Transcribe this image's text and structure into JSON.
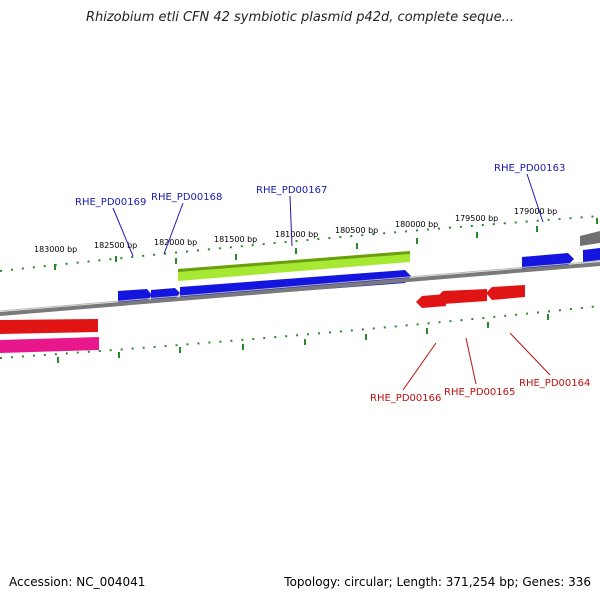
{
  "title": "Rhizobium etli CFN 42 symbiotic plasmid p42d, complete seque...",
  "footer": {
    "accession": "Accession: NC_004041",
    "summary": "Topology: circular; Length: 371,254 bp; Genes: 336"
  },
  "colors": {
    "forward_gene": "#1010e0",
    "reverse_gene": "#e01010",
    "rrna_like": "#e0188a",
    "highlight_gene": "#9ee02a",
    "backbone": "#808080",
    "tick": "#2a8a2a",
    "forward_label": "#1a1ab0",
    "reverse_label": "#c01010"
  },
  "ticks": [
    {
      "label": "183000 bp"
    },
    {
      "label": "182500 bp"
    },
    {
      "label": "182000 bp"
    },
    {
      "label": "181500 bp"
    },
    {
      "label": "181000 bp"
    },
    {
      "label": "180500 bp"
    },
    {
      "label": "180000 bp"
    },
    {
      "label": "179500 bp"
    },
    {
      "label": "179000 bp"
    }
  ],
  "genes_forward": [
    {
      "name": "RHE_PD00169"
    },
    {
      "name": "RHE_PD00168"
    },
    {
      "name": "RHE_PD00167"
    },
    {
      "name": "RHE_PD00163"
    }
  ],
  "genes_reverse": [
    {
      "name": "RHE_PD00166"
    },
    {
      "name": "RHE_PD00165"
    },
    {
      "name": "RHE_PD00164"
    }
  ]
}
